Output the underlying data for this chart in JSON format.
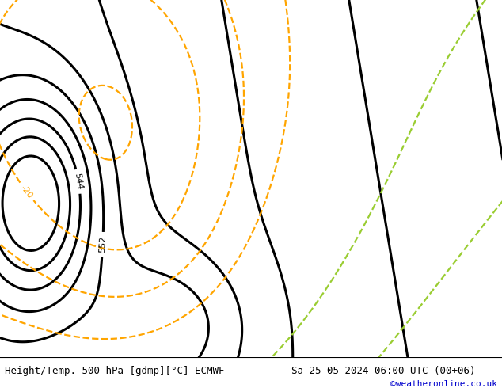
{
  "title_left": "Height/Temp. 500 hPa [gdmp][°C] ECMWF",
  "title_right": "Sa 25-05-2024 06:00 UTC (00+06)",
  "credit": "©weatheronline.co.uk",
  "background_color": "#e8e8e8",
  "land_fill": "#c8f0a0",
  "coastline_color": "#808080",
  "border_color": "#808080",
  "geopotential_color": "#000000",
  "temp_neg_color": "#ffa500",
  "temp_green_color": "#9acd32",
  "geopotential_linewidth": 2.2,
  "temp_linewidth": 1.6,
  "label_fontsize": 8,
  "title_fontsize": 9,
  "credit_fontsize": 8,
  "credit_color": "#0000cc",
  "extent": [
    -25,
    20,
    42,
    65
  ],
  "fig_width": 6.34,
  "fig_height": 4.9,
  "dpi": 100
}
